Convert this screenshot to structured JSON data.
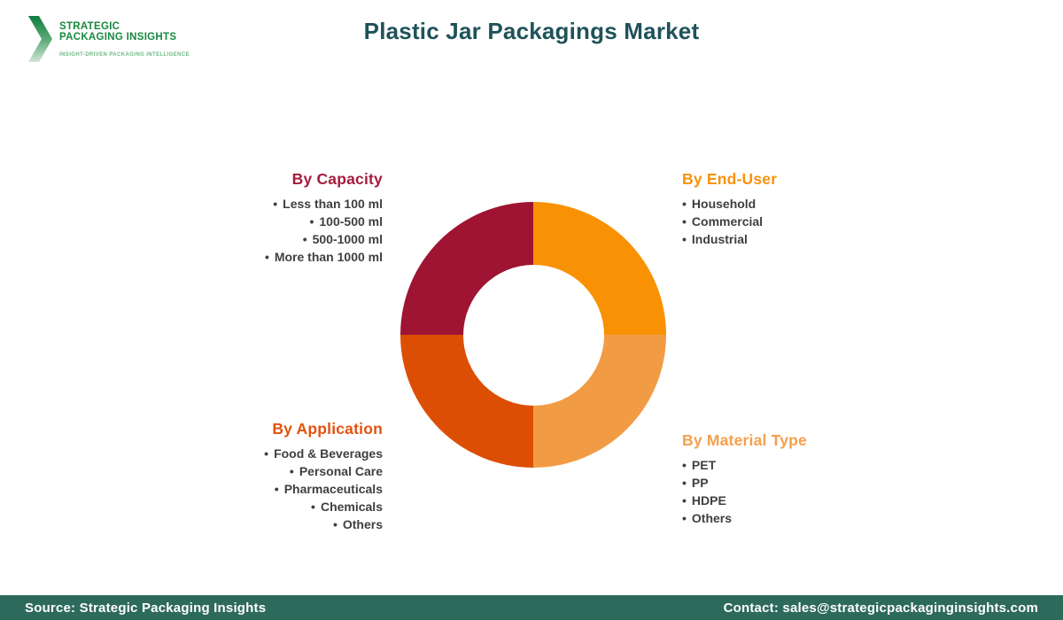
{
  "header": {
    "logo": {
      "line1": "STRATEGIC",
      "line2": "PACKAGING INSIGHTS",
      "tagline": "INSIGHT-DRIVEN PACKAGING INTELLIGENCE"
    },
    "title": "Plastic Jar Packagings Market"
  },
  "sections": {
    "capacity": {
      "title": "By Capacity",
      "accent": "#A51C3C",
      "items": [
        "Less than 100 ml",
        "100-500 ml",
        "500-1000 ml",
        "More than 1000 ml"
      ]
    },
    "end_user": {
      "title": "By End-User",
      "accent": "#F8920B",
      "items": [
        "Household",
        "Commercial",
        "Industrial"
      ]
    },
    "application": {
      "title": "By Application",
      "accent": "#E25310",
      "items": [
        "Food & Beverages",
        "Personal Care",
        "Pharmaceuticals",
        "Chemicals",
        "Others"
      ]
    },
    "material": {
      "title": "By Material Type",
      "accent": "#F5A04C",
      "items": [
        "PET",
        "PP",
        "HDPE",
        "Others"
      ]
    }
  },
  "chart_data": {
    "type": "pie",
    "subtype": "donut",
    "title": "Plastic Jar Packagings Market segmentation",
    "segments": [
      {
        "label": "By End-User",
        "value": 25,
        "color": "#F89204"
      },
      {
        "label": "By Material Type",
        "value": 25,
        "color": "#F29B45"
      },
      {
        "label": "By Application",
        "value": 25,
        "color": "#DD4E05"
      },
      {
        "label": "By Capacity",
        "value": 25,
        "color": "#9E1432"
      }
    ],
    "start_angle_deg": 0,
    "direction": "clockwise",
    "inner_radius_ratio": 0.53,
    "legend_position": "none"
  },
  "footer": {
    "source": "Source: Strategic Packaging Insights",
    "contact": "Contact: sales@strategicpackaginginsights.com"
  },
  "colors": {
    "title_text": "#1F525A",
    "footer_bg": "#2E6A5C",
    "logo_green": "#17893E",
    "tagline_green": "#6CB984",
    "body_text": "#3F3F3F"
  }
}
